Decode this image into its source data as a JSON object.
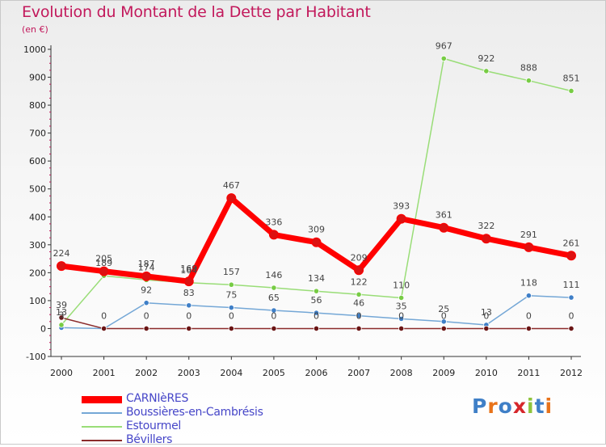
{
  "title": "Evolution du Montant de la Dette par Habitant",
  "subtitle": "(en €)",
  "logo": {
    "letters": [
      "P",
      "r",
      "o",
      "x",
      "i",
      "t",
      "i"
    ],
    "colors": [
      "#3f7fc7",
      "#e8731a",
      "#3f7fc7",
      "#d6262b",
      "#8fc43c",
      "#3f7fc7",
      "#e8731a"
    ]
  },
  "chart_data": {
    "type": "line",
    "title": "Evolution du Montant de la Dette par Habitant",
    "subtitle": "(en €)",
    "categories": [
      "2000",
      "2001",
      "2002",
      "2003",
      "2004",
      "2005",
      "2006",
      "2007",
      "2008",
      "2009",
      "2010",
      "2011",
      "2012"
    ],
    "y_ticks": [
      "-100",
      "0",
      "100",
      "200",
      "300",
      "400",
      "500",
      "600",
      "700",
      "800",
      "900",
      "1000"
    ],
    "ylim": [
      -100,
      1000
    ],
    "grid": false,
    "legend_position": "bottom-left",
    "series": [
      {
        "name": "CARNIèRES",
        "color": "#ff0000",
        "marker_color": "#dd1111",
        "values": [
          224,
          205,
          187,
          169,
          467,
          336,
          309,
          209,
          393,
          361,
          322,
          291,
          261
        ],
        "labels": [
          "224",
          "205",
          "187",
          "169",
          "467",
          "336",
          "309",
          "209",
          "393",
          "361",
          "322",
          "291",
          "261"
        ]
      },
      {
        "name": "Boussières-en-Cambrésis",
        "color": "#74a7d6",
        "marker_color": "#3f7fc7",
        "values": [
          3,
          0,
          92,
          83,
          75,
          65,
          56,
          46,
          35,
          25,
          13,
          118,
          111
        ],
        "labels": [
          "3",
          "",
          "92",
          "83",
          "75",
          "65",
          "56",
          "46",
          "35",
          "25",
          "13",
          "118",
          "111"
        ]
      },
      {
        "name": "Estourmel",
        "color": "#99dd77",
        "marker_color": "#77cc44",
        "values": [
          13,
          189,
          174,
          164,
          157,
          146,
          134,
          122,
          110,
          967,
          922,
          888,
          851
        ],
        "labels": [
          "13",
          "189",
          "174",
          "164",
          "157",
          "146",
          "134",
          "122",
          "110",
          "967",
          "922",
          "888",
          "851"
        ]
      },
      {
        "name": "Bévillers",
        "color": "#8b2b2b",
        "marker_color": "#6a1515",
        "values": [
          39,
          0,
          0,
          0,
          0,
          0,
          0,
          0,
          0,
          0,
          0,
          0,
          0
        ],
        "labels": [
          "39",
          "0",
          "0",
          "0",
          "0",
          "0",
          "0",
          "0",
          "0",
          "0",
          "0",
          "0",
          "0"
        ]
      }
    ]
  }
}
